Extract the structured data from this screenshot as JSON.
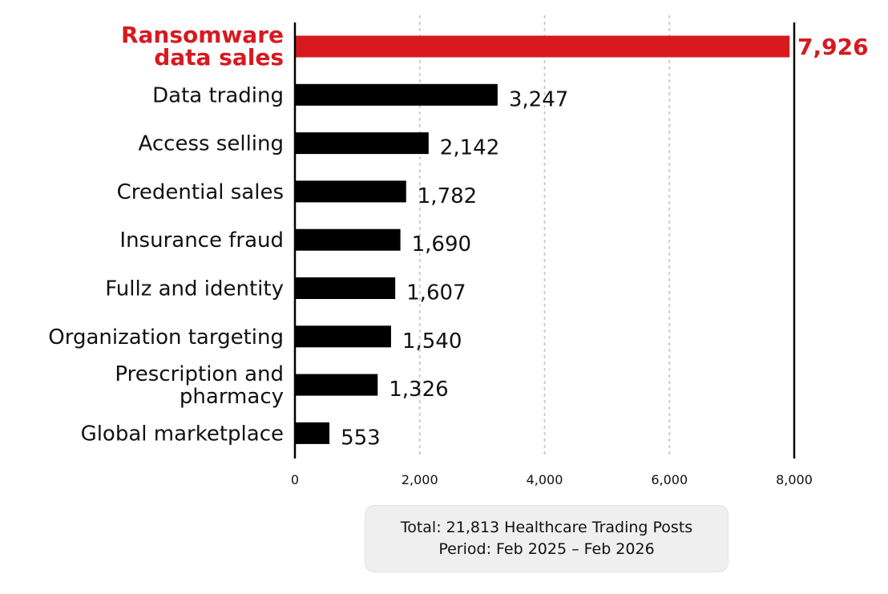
{
  "chart_data": {
    "type": "bar",
    "orientation": "horizontal",
    "categories": [
      [
        "Ransomware",
        "data sales"
      ],
      [
        "Data trading"
      ],
      [
        "Access selling"
      ],
      [
        "Credential sales"
      ],
      [
        "Insurance fraud"
      ],
      [
        "Fullz and identity"
      ],
      [
        "Organization targeting"
      ],
      [
        "Prescription and",
        "pharmacy"
      ],
      [
        "Global marketplace"
      ]
    ],
    "values": [
      7926,
      3247,
      2142,
      1782,
      1690,
      1607,
      1540,
      1326,
      553
    ],
    "value_labels": [
      "7,926",
      "3,247",
      "2,142",
      "1,782",
      "1,690",
      "1,607",
      "1,540",
      "1,326",
      "553"
    ],
    "highlight_index": 0,
    "xlim": [
      0,
      8000
    ],
    "xticks": [
      0,
      2000,
      4000,
      6000,
      8000
    ],
    "xtick_labels": [
      "0",
      "2,000",
      "4,000",
      "6,000",
      "8,000"
    ],
    "grid": "vertical dotted",
    "reference_line": 8000,
    "colors": {
      "highlight": "#d71920",
      "bar": "#000000",
      "grid": "#c8c8c8"
    }
  },
  "footnote": {
    "line1": "Total: 21,813 Healthcare Trading Posts",
    "line2": "Period: Feb 2025 – Feb 2026"
  }
}
